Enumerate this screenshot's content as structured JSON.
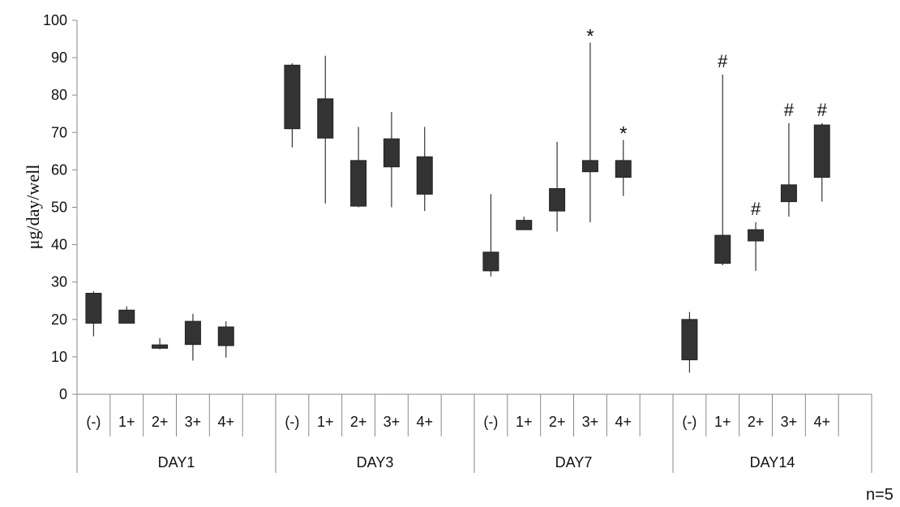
{
  "chart_data": {
    "type": "box",
    "ylabel": "μg/day/well",
    "ylim": [
      0,
      100
    ],
    "yticks": [
      0,
      10,
      20,
      30,
      40,
      50,
      60,
      70,
      80,
      90,
      100
    ],
    "categories": [
      "(-)",
      "1+",
      "2+",
      "3+",
      "4+"
    ],
    "groups": [
      {
        "label": "DAY1",
        "boxes": [
          {
            "category": "(-)",
            "low": 15.5,
            "q1": 19,
            "q3": 27,
            "high": 27.5,
            "mark": ""
          },
          {
            "category": "1+",
            "low": 19,
            "q1": 19,
            "q3": 22.5,
            "high": 23.5,
            "mark": ""
          },
          {
            "category": "2+",
            "low": 12,
            "q1": 12.3,
            "q3": 13.2,
            "high": 15,
            "mark": ""
          },
          {
            "category": "3+",
            "low": 9,
            "q1": 13.3,
            "q3": 19.5,
            "high": 21.5,
            "mark": ""
          },
          {
            "category": "4+",
            "low": 9.8,
            "q1": 13,
            "q3": 18,
            "high": 19.5,
            "mark": ""
          }
        ]
      },
      {
        "label": "DAY3",
        "boxes": [
          {
            "category": "(-)",
            "low": 66,
            "q1": 71,
            "q3": 88,
            "high": 88.5,
            "mark": ""
          },
          {
            "category": "1+",
            "low": 51,
            "q1": 68.5,
            "q3": 79,
            "high": 90.5,
            "mark": ""
          },
          {
            "category": "2+",
            "low": 50,
            "q1": 50.3,
            "q3": 62.5,
            "high": 71.5,
            "mark": ""
          },
          {
            "category": "3+",
            "low": 50,
            "q1": 60.8,
            "q3": 68.3,
            "high": 75.5,
            "mark": ""
          },
          {
            "category": "4+",
            "low": 49,
            "q1": 53.5,
            "q3": 63.5,
            "high": 71.5,
            "mark": ""
          }
        ]
      },
      {
        "label": "DAY7",
        "boxes": [
          {
            "category": "(-)",
            "low": 31.5,
            "q1": 33,
            "q3": 38,
            "high": 53.5,
            "mark": ""
          },
          {
            "category": "1+",
            "low": 44,
            "q1": 44,
            "q3": 46.5,
            "high": 47.5,
            "mark": ""
          },
          {
            "category": "2+",
            "low": 43.5,
            "q1": 49,
            "q3": 55,
            "high": 67.5,
            "mark": ""
          },
          {
            "category": "3+",
            "low": 46,
            "q1": 59.5,
            "q3": 62.5,
            "high": 94,
            "mark": "*"
          },
          {
            "category": "4+",
            "low": 53,
            "q1": 58,
            "q3": 62.5,
            "high": 68,
            "mark": "*"
          }
        ]
      },
      {
        "label": "DAY14",
        "boxes": [
          {
            "category": "(-)",
            "low": 5.8,
            "q1": 9.2,
            "q3": 20,
            "high": 22,
            "mark": ""
          },
          {
            "category": "1+",
            "low": 34.5,
            "q1": 35,
            "q3": 42.5,
            "high": 85.5,
            "mark": "#"
          },
          {
            "category": "2+",
            "low": 33,
            "q1": 41,
            "q3": 44,
            "high": 46,
            "mark": "#"
          },
          {
            "category": "3+",
            "low": 47.5,
            "q1": 51.5,
            "q3": 56,
            "high": 72.5,
            "mark": "#"
          },
          {
            "category": "4+",
            "low": 51.5,
            "q1": 58,
            "q3": 72,
            "high": 72.5,
            "mark": "#"
          }
        ]
      }
    ],
    "box_color": "#333333",
    "grid": false,
    "legend": "none",
    "note": "n=5"
  }
}
